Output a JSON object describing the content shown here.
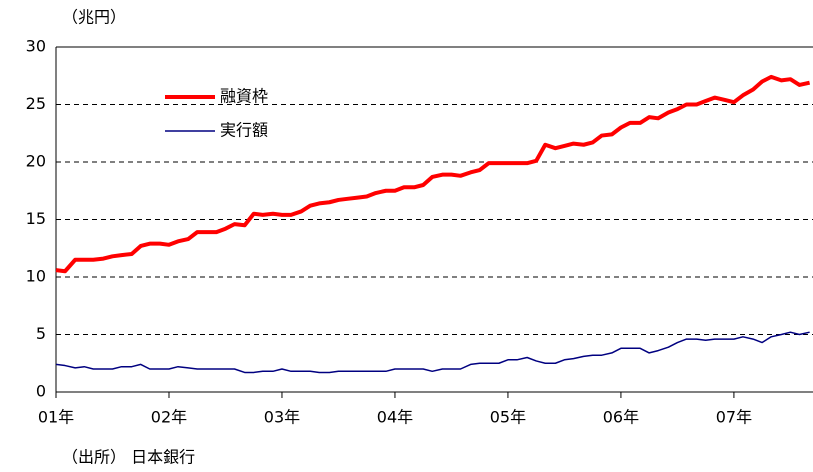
{
  "chart_data": {
    "type": "line",
    "y_unit_label": "（兆円）",
    "source": "（出所） 日本銀行",
    "x": [
      2001,
      2001.08,
      2001.17,
      2001.25,
      2001.33,
      2001.42,
      2001.5,
      2001.58,
      2001.67,
      2001.75,
      2001.83,
      2001.92,
      2002,
      2002.08,
      2002.17,
      2002.25,
      2002.33,
      2002.42,
      2002.5,
      2002.58,
      2002.67,
      2002.75,
      2002.83,
      2002.92,
      2003,
      2003.08,
      2003.17,
      2003.25,
      2003.33,
      2003.42,
      2003.5,
      2003.58,
      2003.67,
      2003.75,
      2003.83,
      2003.92,
      2004,
      2004.08,
      2004.17,
      2004.25,
      2004.33,
      2004.42,
      2004.5,
      2004.58,
      2004.67,
      2004.75,
      2004.83,
      2004.92,
      2005,
      2005.08,
      2005.17,
      2005.25,
      2005.33,
      2005.42,
      2005.5,
      2005.58,
      2005.67,
      2005.75,
      2005.83,
      2005.92,
      2006,
      2006.08,
      2006.17,
      2006.25,
      2006.33,
      2006.42,
      2006.5,
      2006.58,
      2006.67,
      2006.75,
      2006.83,
      2006.92,
      2007,
      2007.08,
      2007.17,
      2007.25,
      2007.33,
      2007.42,
      2007.5,
      2007.58,
      2007.67
    ],
    "series": [
      {
        "name": "融資枠",
        "color": "#ff0000",
        "width": 4,
        "values": [
          10.6,
          10.5,
          11.5,
          11.5,
          11.5,
          11.6,
          11.8,
          11.9,
          12.0,
          12.7,
          12.9,
          12.9,
          12.8,
          13.1,
          13.3,
          13.9,
          13.9,
          13.9,
          14.2,
          14.6,
          14.5,
          15.5,
          15.4,
          15.5,
          15.4,
          15.4,
          15.7,
          16.2,
          16.4,
          16.5,
          16.7,
          16.8,
          16.9,
          17.0,
          17.3,
          17.5,
          17.5,
          17.8,
          17.8,
          18.0,
          18.7,
          18.9,
          18.9,
          18.8,
          19.1,
          19.3,
          19.9,
          19.9,
          19.9,
          19.9,
          19.9,
          20.1,
          21.5,
          21.2,
          21.4,
          21.6,
          21.5,
          21.7,
          22.3,
          22.4,
          23.0,
          23.4,
          23.4,
          23.9,
          23.8,
          24.3,
          24.6,
          25.0,
          25.0,
          25.3,
          25.6,
          25.4,
          25.2,
          25.8,
          26.3,
          27.0,
          27.4,
          27.1,
          27.2,
          26.7,
          26.9
        ]
      },
      {
        "name": "実行額",
        "color": "#000080",
        "width": 1.5,
        "values": [
          2.4,
          2.3,
          2.1,
          2.2,
          2.0,
          2.0,
          2.0,
          2.2,
          2.2,
          2.4,
          2.0,
          2.0,
          2.0,
          2.2,
          2.1,
          2.0,
          2.0,
          2.0,
          2.0,
          2.0,
          1.7,
          1.7,
          1.8,
          1.8,
          2.0,
          1.8,
          1.8,
          1.8,
          1.7,
          1.7,
          1.8,
          1.8,
          1.8,
          1.8,
          1.8,
          1.8,
          2.0,
          2.0,
          2.0,
          2.0,
          1.8,
          2.0,
          2.0,
          2.0,
          2.4,
          2.5,
          2.5,
          2.5,
          2.8,
          2.8,
          3.0,
          2.7,
          2.5,
          2.5,
          2.8,
          2.9,
          3.1,
          3.2,
          3.2,
          3.4,
          3.8,
          3.8,
          3.8,
          3.4,
          3.6,
          3.9,
          4.3,
          4.6,
          4.6,
          4.5,
          4.6,
          4.6,
          4.6,
          4.8,
          4.6,
          4.3,
          4.8,
          5.0,
          5.2,
          5.0,
          5.2
        ]
      }
    ],
    "xlim": [
      2001,
      2007.7
    ],
    "xticks": [
      {
        "value": 2001,
        "label": "01年"
      },
      {
        "value": 2002,
        "label": "02年"
      },
      {
        "value": 2003,
        "label": "03年"
      },
      {
        "value": 2004,
        "label": "04年"
      },
      {
        "value": 2005,
        "label": "05年"
      },
      {
        "value": 2006,
        "label": "06年"
      },
      {
        "value": 2007,
        "label": "07年"
      }
    ],
    "ylim": [
      0,
      30
    ],
    "yticks": [
      0,
      5,
      10,
      15,
      20,
      25,
      30
    ],
    "grid": true
  }
}
